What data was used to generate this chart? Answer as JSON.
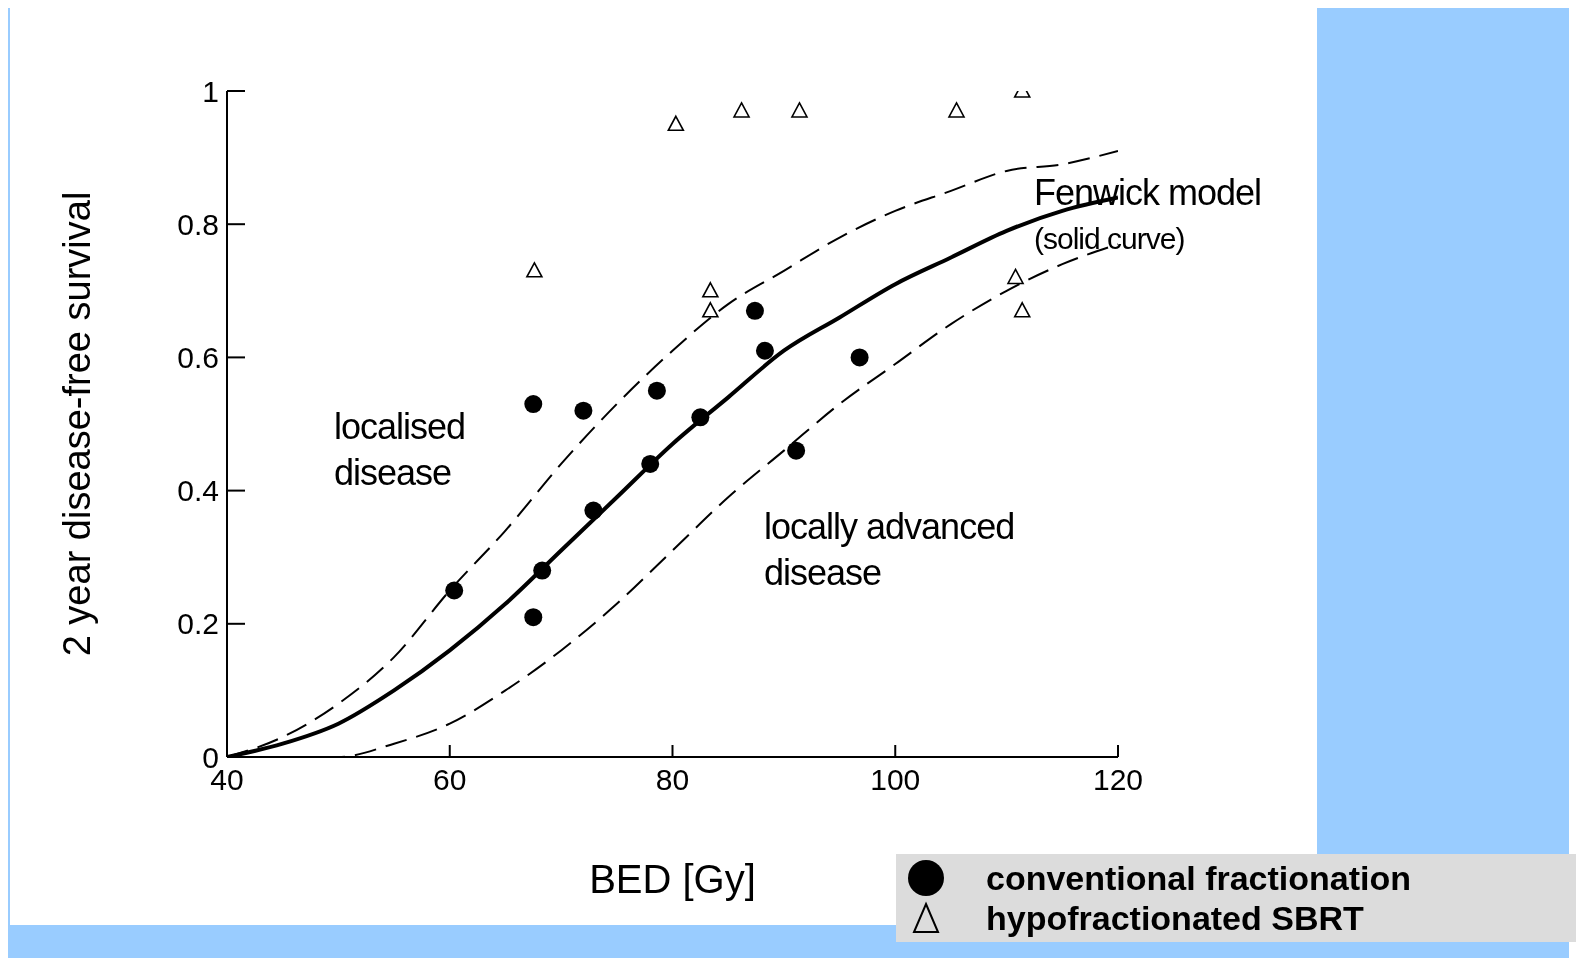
{
  "chart_data": {
    "type": "scatter",
    "xlabel": "BED [Gy]",
    "ylabel": "2 year disease-free survival",
    "xlim": [
      40,
      120
    ],
    "xticks": [
      40,
      60,
      80,
      100,
      120
    ],
    "ylim": [
      0,
      1
    ],
    "yticks": [
      0,
      0.2,
      0.4,
      0.6,
      0.8,
      1
    ],
    "grid": false,
    "legend": "bottom right",
    "series": [
      {
        "type": "line",
        "line_style": "dashed",
        "marker": "none",
        "color": "#000000",
        "x": [
          40,
          45,
          50,
          55,
          60,
          65,
          70,
          75,
          80,
          85,
          90,
          95,
          100,
          105,
          110,
          115,
          120
        ],
        "values": [
          0,
          0.03,
          0.08,
          0.15,
          0.25,
          0.34,
          0.44,
          0.53,
          0.61,
          0.68,
          0.73,
          0.78,
          0.82,
          0.85,
          0.88,
          0.89,
          0.91
        ]
      },
      {
        "type": "line",
        "line_style": "solid",
        "marker": "none",
        "color": "#000000",
        "x": [
          40,
          45,
          50,
          55,
          60,
          65,
          70,
          75,
          80,
          85,
          90,
          95,
          100,
          105,
          110,
          115,
          120
        ],
        "values": [
          0,
          0.02,
          0.05,
          0.1,
          0.16,
          0.23,
          0.31,
          0.39,
          0.47,
          0.54,
          0.61,
          0.66,
          0.71,
          0.75,
          0.79,
          0.82,
          0.84
        ]
      },
      {
        "type": "line",
        "line_style": "dashed",
        "marker": "none",
        "color": "#000000",
        "x": [
          40,
          45,
          50,
          55,
          60,
          65,
          70,
          75,
          80,
          85,
          90,
          95,
          100,
          105,
          110,
          115,
          120
        ],
        "values": [
          0,
          0,
          0,
          0.02,
          0.05,
          0.1,
          0.16,
          0.23,
          0.31,
          0.39,
          0.46,
          0.53,
          0.59,
          0.65,
          0.7,
          0.74,
          0.77
        ]
      },
      {
        "name": "conventional fractionation",
        "marker": "circle",
        "color": "#000000",
        "x": [
          60.4,
          67.5,
          67.5,
          68.3,
          72,
          72.9,
          78,
          78.6,
          82.5,
          87.4,
          88.3,
          91.1,
          96.8
        ],
        "values": [
          0.25,
          0.53,
          0.21,
          0.28,
          0.52,
          0.37,
          0.44,
          0.55,
          0.51,
          0.67,
          0.61,
          0.46,
          0.6
        ]
      },
      {
        "name": "hypofractionated SBRT",
        "marker": "triangle",
        "color": "#000000",
        "x": [
          67.6,
          80.3,
          86.2,
          91.4,
          83.4,
          83.4,
          105.5,
          110.8,
          111.4,
          111.4
        ],
        "values": [
          0.73,
          0.95,
          0.97,
          0.97,
          0.7,
          0.67,
          0.97,
          0.72,
          0.67,
          1
        ]
      }
    ],
    "annotations": [
      "localised\ndisease",
      "locally advanced\ndisease",
      "Fenwick model\n(solid curve)"
    ]
  }
}
